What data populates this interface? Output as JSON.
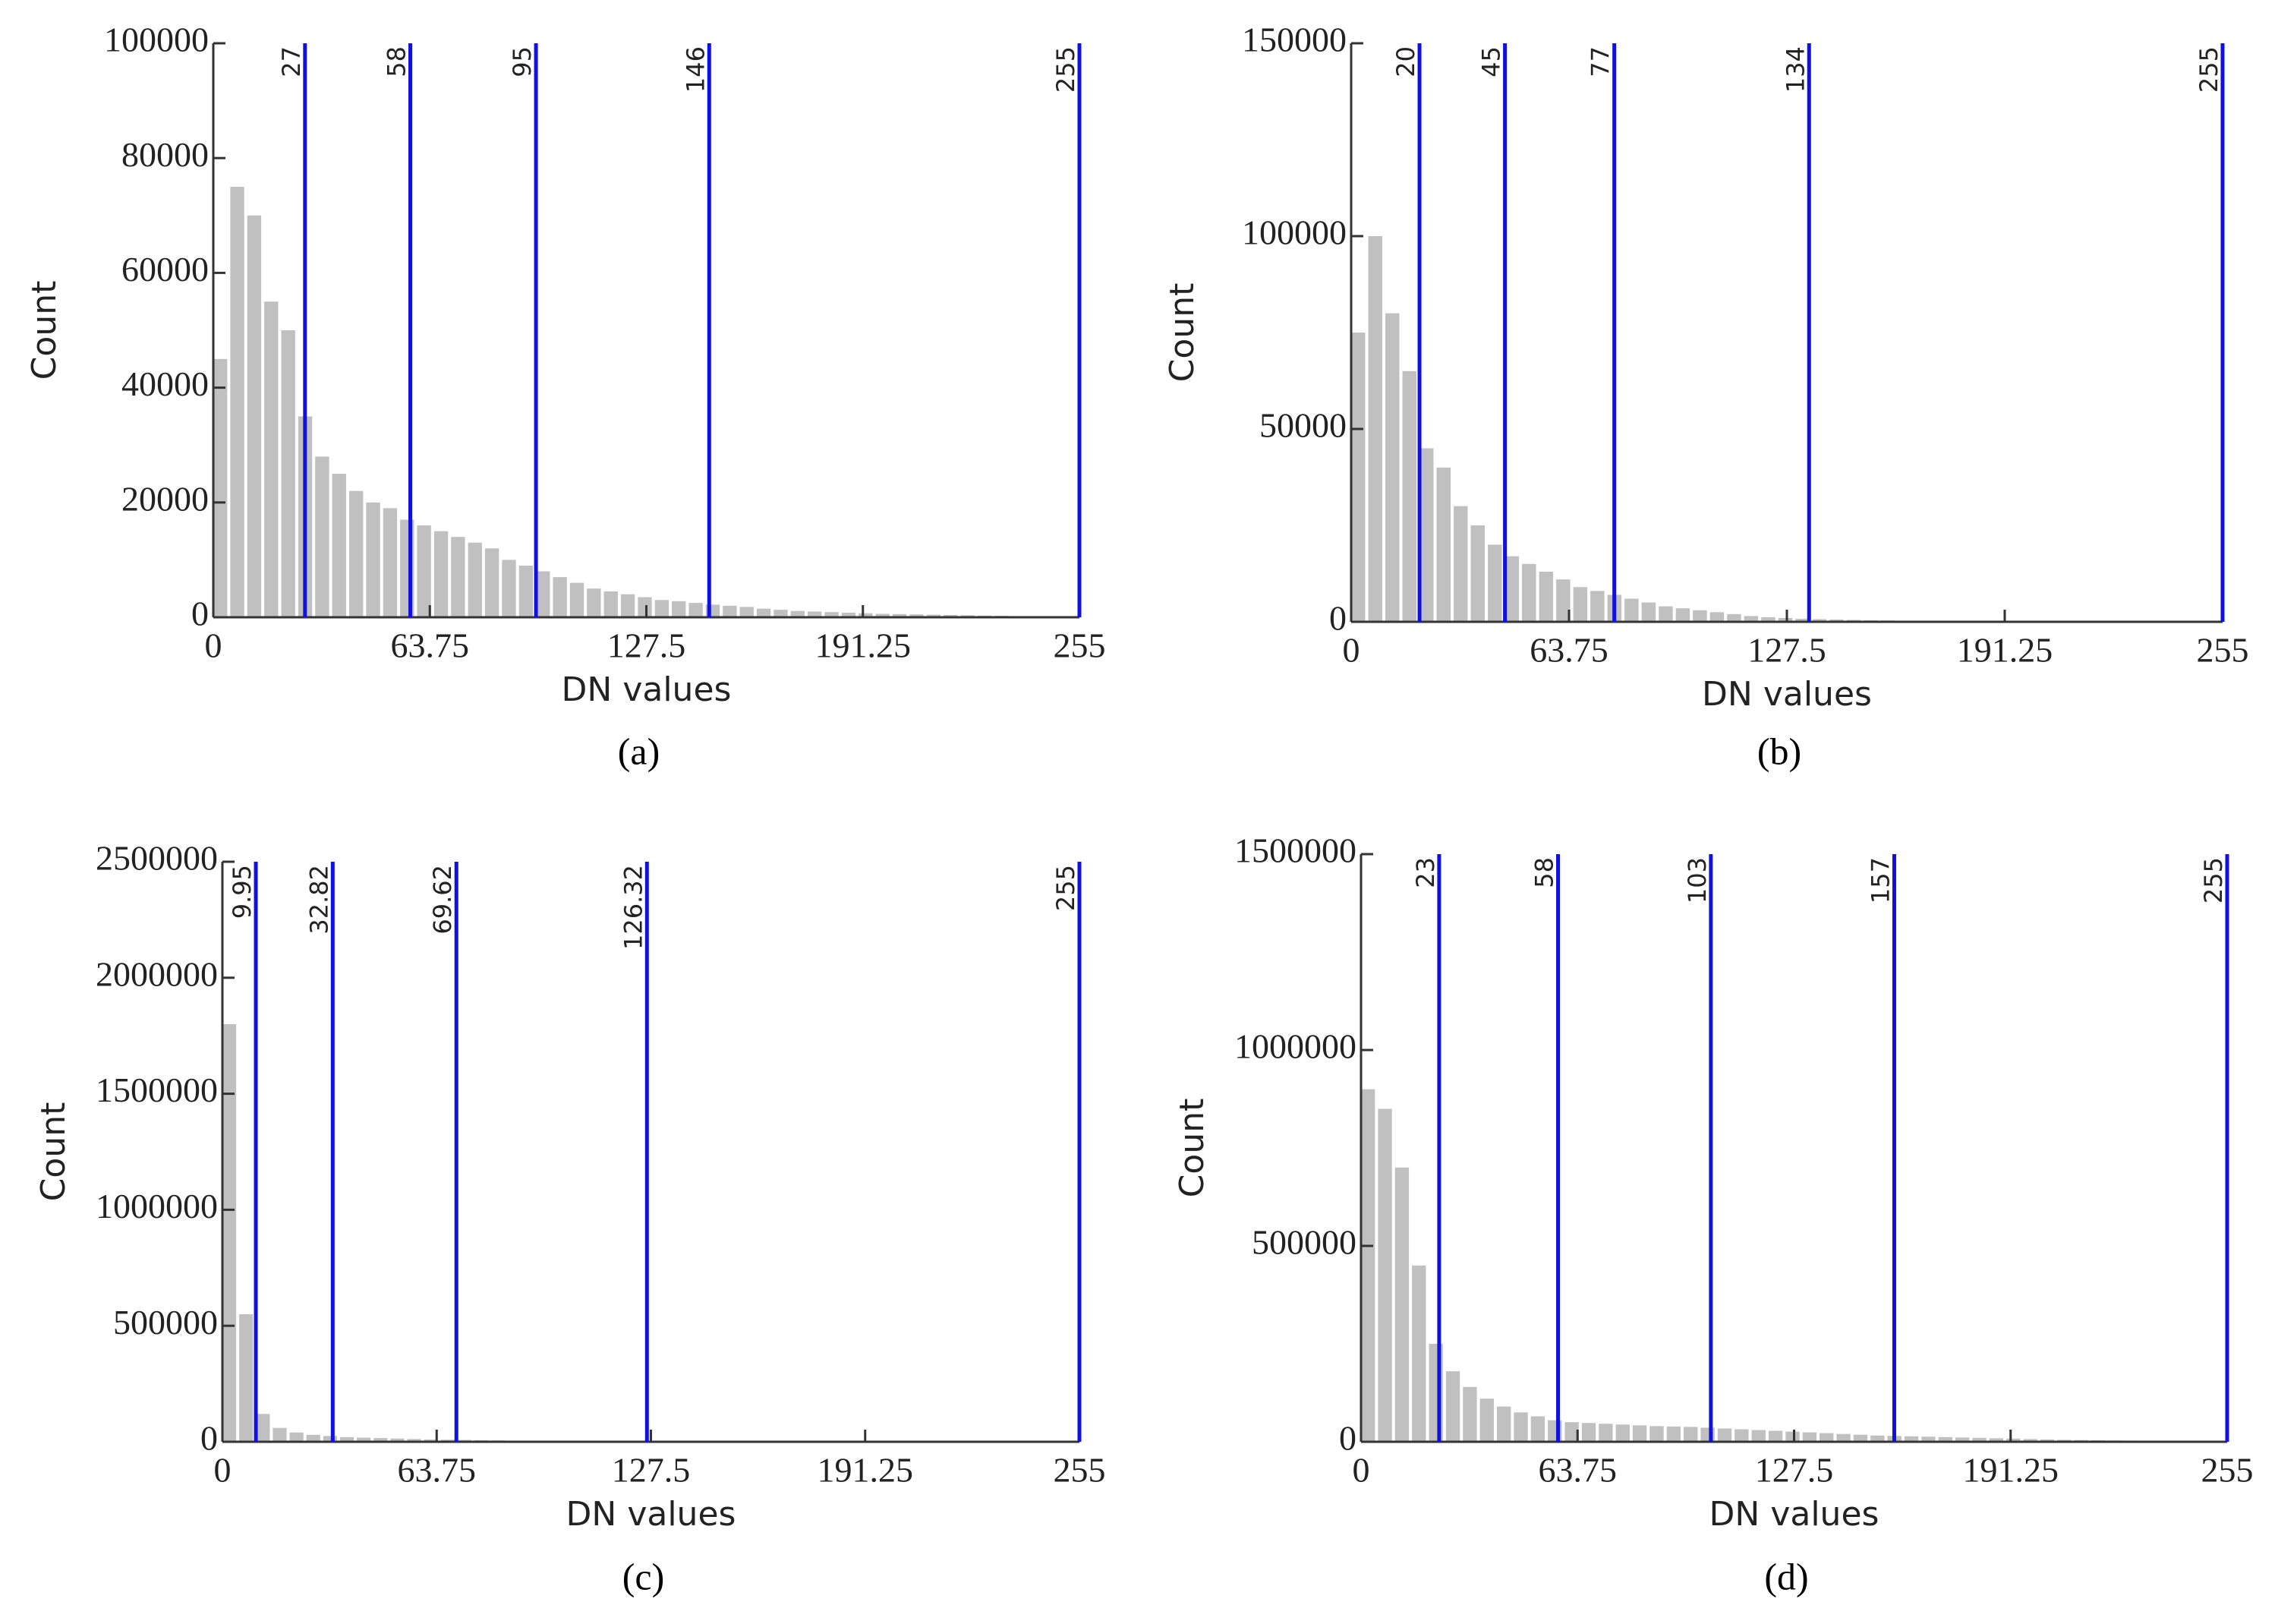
{
  "chart_data": [
    {
      "type": "histogram",
      "caption": "(a)",
      "xlabel": "DN values",
      "ylabel": "Count",
      "color": "#c0c0c0",
      "threshold_color": "#1010e0",
      "bins": [
        0,
        5,
        10,
        15,
        20,
        25,
        30,
        35,
        40,
        45,
        50,
        55,
        60,
        65,
        70,
        75,
        80,
        85,
        90,
        95,
        100,
        105,
        110,
        115,
        120,
        125,
        130,
        135,
        140,
        145,
        150,
        155,
        160,
        165,
        170,
        175,
        180,
        185,
        190,
        195,
        200,
        205,
        210,
        215,
        220,
        225,
        230,
        235,
        240,
        245,
        250,
        255
      ],
      "counts": [
        45000,
        75000,
        70000,
        55000,
        50000,
        35000,
        28000,
        25000,
        22000,
        20000,
        19000,
        17000,
        16000,
        15000,
        14000,
        13000,
        12000,
        10000,
        9000,
        8000,
        7000,
        6000,
        5000,
        4500,
        4000,
        3500,
        3000,
        2800,
        2500,
        2200,
        2000,
        1800,
        1500,
        1300,
        1100,
        1000,
        900,
        800,
        700,
        600,
        550,
        500,
        450,
        400,
        350,
        300,
        250,
        200,
        150,
        100,
        50
      ],
      "thresholds": [
        27,
        58,
        95,
        146,
        255
      ],
      "xlim": [
        0,
        255
      ],
      "xticks": [
        0,
        63.75,
        127.5,
        191.25,
        255
      ],
      "ylim": [
        0,
        100000
      ],
      "yticks": [
        0,
        20000,
        40000,
        60000,
        80000,
        100000
      ]
    },
    {
      "type": "histogram",
      "caption": "(b)",
      "xlabel": "DN values",
      "ylabel": "Count",
      "color": "#c0c0c0",
      "threshold_color": "#1010e0",
      "bins": [
        0,
        5,
        10,
        15,
        20,
        25,
        30,
        35,
        40,
        45,
        50,
        55,
        60,
        65,
        70,
        75,
        80,
        85,
        90,
        95,
        100,
        105,
        110,
        115,
        120,
        125,
        130,
        135,
        140,
        145,
        150,
        155,
        160,
        165,
        170,
        175,
        180,
        185,
        190,
        195,
        200,
        205,
        210,
        215,
        220,
        225,
        230,
        235,
        240,
        245,
        250,
        255
      ],
      "counts": [
        75000,
        100000,
        80000,
        65000,
        45000,
        40000,
        30000,
        25000,
        20000,
        17000,
        15000,
        13000,
        11000,
        9000,
        8000,
        7000,
        6000,
        5000,
        4000,
        3500,
        3000,
        2500,
        2000,
        1500,
        1200,
        1000,
        800,
        700,
        600,
        500,
        400,
        350,
        300,
        250,
        200,
        180,
        160,
        140,
        120,
        100,
        90,
        80,
        70,
        60,
        50,
        40,
        30,
        20,
        15,
        10,
        5
      ],
      "thresholds": [
        20,
        45,
        77,
        134,
        255
      ],
      "xlim": [
        0,
        255
      ],
      "xticks": [
        0,
        63.75,
        127.5,
        191.25,
        255
      ],
      "ylim": [
        0,
        150000
      ],
      "yticks": [
        0,
        50000,
        100000,
        150000
      ]
    },
    {
      "type": "histogram",
      "caption": "(c)",
      "xlabel": "DN values",
      "ylabel": "Count",
      "color": "#c0c0c0",
      "threshold_color": "#1010e0",
      "bins": [
        0,
        5,
        10,
        15,
        20,
        25,
        30,
        35,
        40,
        45,
        50,
        55,
        60,
        65,
        70,
        75,
        80,
        85,
        90,
        95,
        100,
        105,
        110,
        115,
        120,
        125,
        130,
        135,
        140,
        145,
        150,
        155,
        160,
        165,
        170,
        175,
        180,
        185,
        190,
        195,
        200,
        205,
        210,
        215,
        220,
        225,
        230,
        235,
        240,
        245,
        250,
        255
      ],
      "counts": [
        1800000,
        550000,
        120000,
        60000,
        40000,
        30000,
        25000,
        20000,
        18000,
        16000,
        14000,
        12000,
        10000,
        9000,
        8000,
        7000,
        6000,
        5000,
        4500,
        4000,
        3500,
        3000,
        2800,
        2600,
        2400,
        2200,
        2000,
        1800,
        1600,
        1400,
        1200,
        1100,
        1000,
        900,
        800,
        700,
        600,
        550,
        500,
        450,
        400,
        350,
        300,
        250,
        200,
        150,
        120,
        100,
        80,
        60,
        40
      ],
      "thresholds": [
        9.95,
        32.82,
        69.62,
        126.32,
        255
      ],
      "xlim": [
        0,
        255
      ],
      "xticks": [
        0,
        63.75,
        127.5,
        191.25,
        255
      ],
      "ylim": [
        0,
        2500000
      ],
      "yticks": [
        0,
        500000,
        1000000,
        1500000,
        2000000,
        2500000
      ]
    },
    {
      "type": "histogram",
      "caption": "(d)",
      "xlabel": "DN values",
      "ylabel": "Count",
      "color": "#c0c0c0",
      "threshold_color": "#1010e0",
      "bins": [
        0,
        5,
        10,
        15,
        20,
        25,
        30,
        35,
        40,
        45,
        50,
        55,
        60,
        65,
        70,
        75,
        80,
        85,
        90,
        95,
        100,
        105,
        110,
        115,
        120,
        125,
        130,
        135,
        140,
        145,
        150,
        155,
        160,
        165,
        170,
        175,
        180,
        185,
        190,
        195,
        200,
        205,
        210,
        215,
        220,
        225,
        230,
        235,
        240,
        245,
        250,
        255
      ],
      "counts": [
        900000,
        850000,
        700000,
        450000,
        250000,
        180000,
        140000,
        110000,
        90000,
        75000,
        65000,
        55000,
        50000,
        48000,
        46000,
        44000,
        42000,
        40000,
        39000,
        38000,
        36000,
        34000,
        32000,
        30000,
        28000,
        26000,
        24000,
        22000,
        20000,
        18000,
        16000,
        15000,
        14000,
        13000,
        12000,
        11000,
        10000,
        9000,
        8000,
        7000,
        6000,
        5000,
        4500,
        4000,
        3500,
        3000,
        2500,
        2000,
        1500,
        1000,
        500
      ],
      "thresholds": [
        23,
        58,
        103,
        157,
        255
      ],
      "xlim": [
        0,
        255
      ],
      "xticks": [
        0,
        63.75,
        127.5,
        191.25,
        255
      ],
      "ylim": [
        0,
        1500000
      ],
      "yticks": [
        0,
        500000,
        1000000,
        1500000
      ]
    }
  ]
}
